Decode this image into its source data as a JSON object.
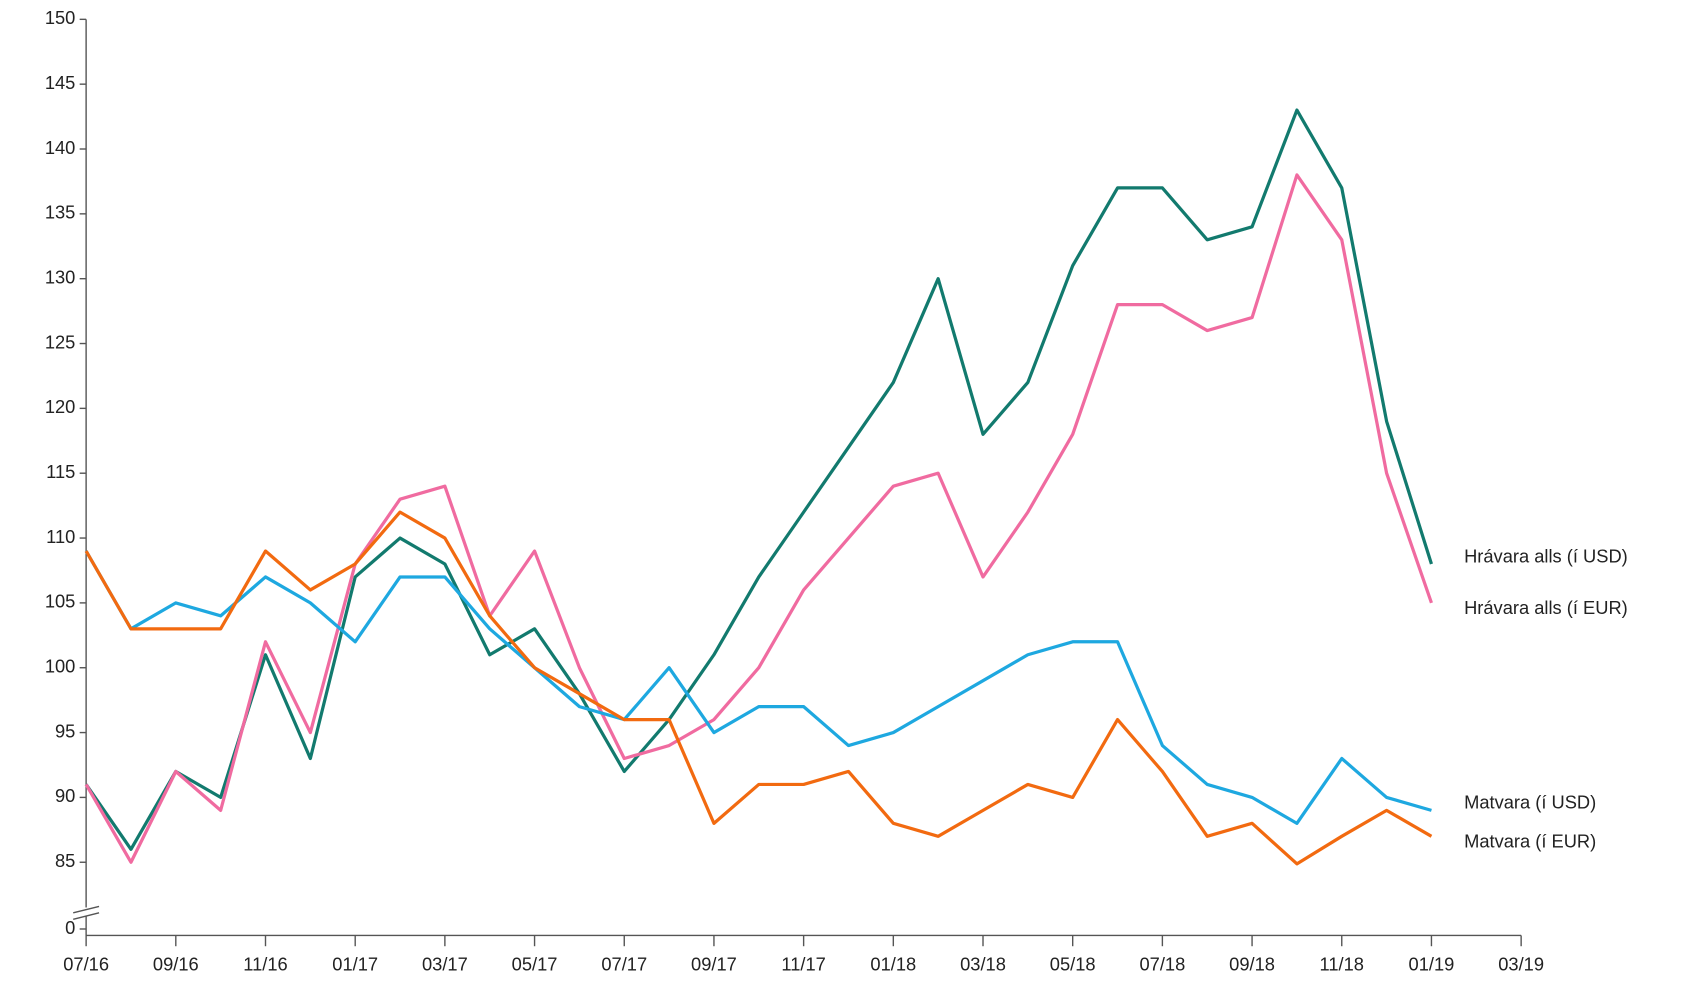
{
  "chart_data": {
    "type": "line",
    "x": [
      "07/16",
      "08/16",
      "09/16",
      "10/16",
      "11/16",
      "12/16",
      "01/17",
      "02/17",
      "03/17",
      "04/17",
      "05/17",
      "06/17",
      "07/17",
      "08/17",
      "09/17",
      "10/17",
      "11/17",
      "12/17",
      "01/18",
      "02/18",
      "03/18",
      "04/18",
      "05/18",
      "06/18",
      "07/18",
      "08/18",
      "09/18",
      "10/18",
      "11/18",
      "12/18",
      "01/19"
    ],
    "xticks": [
      "07/16",
      "09/16",
      "11/16",
      "01/17",
      "03/17",
      "05/17",
      "07/17",
      "09/17",
      "11/17",
      "01/18",
      "03/18",
      "05/18",
      "07/18",
      "09/18",
      "11/18",
      "01/19",
      "03/19"
    ],
    "ylim": [
      0,
      150
    ],
    "y_break": [
      0,
      85
    ],
    "yticks": [
      0,
      85,
      90,
      95,
      100,
      105,
      110,
      115,
      120,
      125,
      130,
      135,
      140,
      145,
      150
    ],
    "series": [
      {
        "name": "Hrávara alls (í USD)",
        "color": "#127a6e",
        "values": [
          91,
          86,
          92,
          90,
          101,
          93,
          107,
          110,
          108,
          101,
          103,
          98,
          92,
          96,
          101,
          107,
          112,
          117,
          122,
          130,
          118,
          122,
          131,
          137,
          137,
          133,
          134,
          143,
          137,
          119,
          108
        ]
      },
      {
        "name": "Hrávara alls (í EUR)",
        "color": "#f06ba0",
        "values": [
          91,
          85,
          92,
          89,
          102,
          95,
          108,
          113,
          114,
          104,
          109,
          100,
          93,
          94,
          96,
          100,
          106,
          110,
          114,
          115,
          107,
          112,
          118,
          128,
          128,
          126,
          127,
          138,
          133,
          115,
          105
        ]
      },
      {
        "name": "Matvara (í USD)",
        "color": "#1ea8e0",
        "values": [
          109,
          103,
          105,
          104,
          107,
          105,
          102,
          107,
          107,
          103,
          100,
          97,
          96,
          100,
          95,
          97,
          97,
          94,
          95,
          97,
          99,
          101,
          102,
          102,
          94,
          91,
          90,
          88,
          93,
          90,
          89
        ]
      },
      {
        "name": "Matvara (í EUR)",
        "color": "#f26a10",
        "values": [
          109,
          103,
          103,
          103,
          109,
          106,
          108,
          112,
          110,
          104,
          100,
          98,
          96,
          96,
          88,
          91,
          91,
          92,
          88,
          87,
          89,
          91,
          90,
          96,
          92,
          87,
          88,
          83,
          87,
          89,
          87
        ]
      }
    ]
  }
}
